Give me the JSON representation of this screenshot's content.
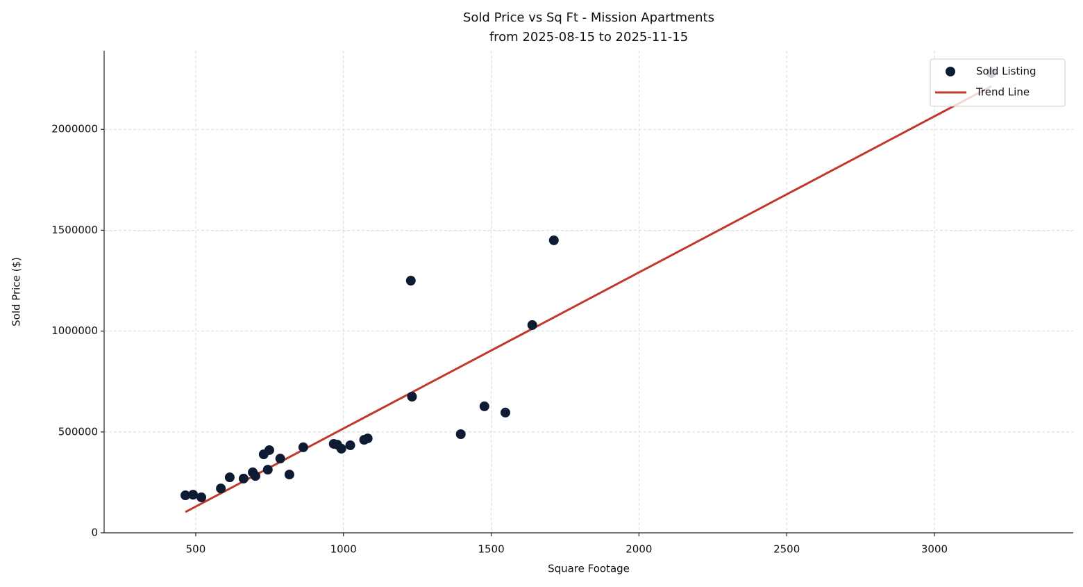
{
  "chart_data": {
    "type": "scatter",
    "title": "Sold Price vs Sq Ft - Mission Apartments",
    "subtitle": "from 2025-08-15 to 2025-11-15",
    "x_label": "Square Footage",
    "y_label": "Sold Price ($)",
    "xlim": [
      190,
      3470
    ],
    "ylim": [
      0,
      2390000
    ],
    "xticks": [
      500,
      1000,
      1500,
      2000,
      2500,
      3000
    ],
    "yticks": [
      0,
      500000,
      1000000,
      1500000,
      2000000
    ],
    "grid": true,
    "legend": "upper right",
    "series": [
      {
        "name": "Sold Listing",
        "type": "scatter",
        "color": "#0d1b33",
        "x": [
          465,
          491,
          519,
          585,
          615,
          662,
          693,
          702,
          730,
          744,
          749,
          786,
          817,
          864,
          967,
          979,
          993,
          1023,
          1070,
          1082,
          1228,
          1232,
          1397,
          1477,
          1548,
          1639,
          1712,
          3193
        ],
        "values": [
          186000,
          189000,
          176000,
          220000,
          275000,
          269000,
          300000,
          282000,
          389000,
          313000,
          410000,
          368000,
          289000,
          424000,
          441000,
          437000,
          417000,
          434000,
          461000,
          468000,
          1250000,
          675000,
          489000,
          627000,
          596000,
          1030000,
          1450000,
          2280000
        ]
      },
      {
        "name": "Trend Line",
        "type": "line",
        "color": "#c0392b",
        "x": [
          465,
          3193
        ],
        "values": [
          103000,
          2214000
        ]
      }
    ]
  }
}
